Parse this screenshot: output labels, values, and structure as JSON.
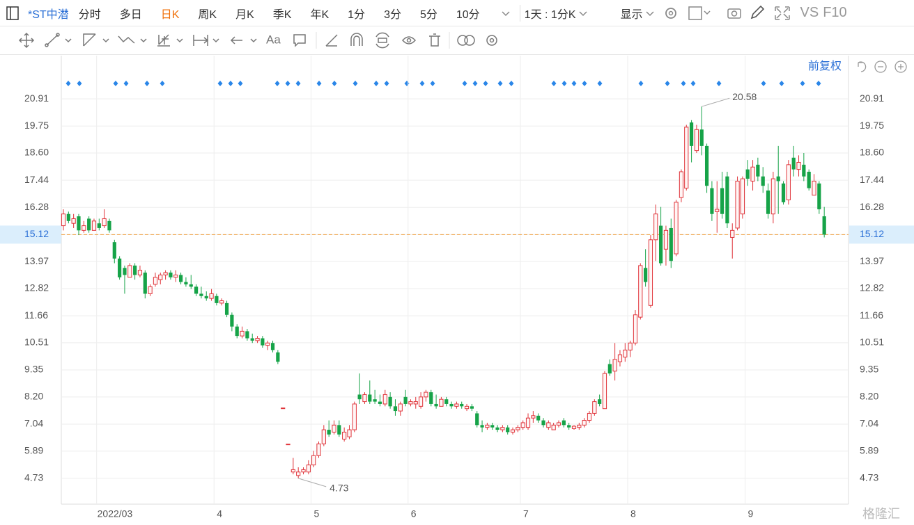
{
  "toolbar": {
    "stock": "*ST中潜",
    "tabs": [
      "分时",
      "多日",
      "日K",
      "周K",
      "月K",
      "季K",
      "年K",
      "1分",
      "3分",
      "5分",
      "10分"
    ],
    "active_tab": 2,
    "interval": "1天 : 1分K",
    "display": "显示",
    "vs": "VS",
    "f10": "F10"
  },
  "adjust": "前复权",
  "watermark": "格隆汇",
  "chart_data": {
    "type": "candlestick",
    "candles": [
      [
        15.5,
        16.2,
        15.3,
        16.0
      ],
      [
        16.0,
        16.1,
        15.6,
        15.7
      ],
      [
        15.6,
        16.0,
        15.4,
        15.8
      ],
      [
        15.9,
        16.0,
        15.1,
        15.3
      ],
      [
        15.3,
        15.7,
        15.2,
        15.5
      ],
      [
        15.8,
        15.9,
        15.2,
        15.3
      ],
      [
        15.3,
        15.8,
        15.3,
        15.7
      ],
      [
        15.6,
        15.8,
        15.3,
        15.4
      ],
      [
        15.5,
        16.2,
        15.4,
        15.8
      ],
      [
        15.7,
        15.8,
        15.2,
        15.3
      ],
      [
        14.8,
        14.9,
        13.9,
        14.1
      ],
      [
        14.1,
        14.2,
        13.2,
        13.3
      ],
      [
        13.7,
        13.8,
        12.6,
        13.4
      ],
      [
        13.3,
        13.9,
        13.3,
        13.8
      ],
      [
        13.8,
        13.9,
        13.2,
        13.4
      ],
      [
        13.4,
        13.8,
        13.3,
        13.6
      ],
      [
        13.5,
        13.6,
        12.4,
        12.6
      ],
      [
        12.6,
        13.0,
        12.5,
        12.9
      ],
      [
        13.0,
        13.5,
        12.9,
        13.3
      ],
      [
        13.2,
        13.5,
        13.0,
        13.4
      ],
      [
        13.4,
        13.6,
        13.2,
        13.5
      ],
      [
        13.5,
        13.6,
        13.2,
        13.3
      ],
      [
        13.3,
        13.6,
        13.1,
        13.4
      ],
      [
        13.4,
        13.5,
        13.0,
        13.1
      ],
      [
        13.1,
        13.3,
        12.9,
        13.0
      ],
      [
        13.0,
        13.4,
        12.8,
        12.9
      ],
      [
        12.9,
        13.0,
        12.5,
        12.6
      ],
      [
        12.6,
        12.9,
        12.4,
        12.5
      ],
      [
        12.5,
        12.7,
        12.3,
        12.4
      ],
      [
        12.4,
        12.8,
        12.3,
        12.6
      ],
      [
        12.5,
        12.6,
        12.1,
        12.2
      ],
      [
        12.2,
        12.4,
        12.1,
        12.3
      ],
      [
        12.2,
        12.3,
        11.6,
        11.7
      ],
      [
        11.7,
        11.8,
        11.0,
        11.2
      ],
      [
        11.2,
        11.3,
        10.7,
        10.8
      ],
      [
        10.8,
        11.2,
        10.7,
        11.0
      ],
      [
        11.0,
        11.1,
        10.6,
        10.7
      ],
      [
        10.7,
        10.9,
        10.5,
        10.6
      ],
      [
        10.6,
        10.8,
        10.5,
        10.7
      ],
      [
        10.7,
        10.8,
        10.3,
        10.4
      ],
      [
        10.4,
        10.6,
        10.2,
        10.5
      ],
      [
        10.5,
        10.6,
        10.1,
        10.2
      ],
      [
        10.1,
        10.2,
        9.6,
        9.7
      ],
      [
        7.73,
        7.73,
        7.73,
        7.73
      ],
      [
        6.19,
        6.19,
        6.19,
        6.19
      ],
      [
        5.0,
        5.6,
        4.9,
        5.1
      ],
      [
        4.85,
        5.2,
        4.73,
        5.0
      ],
      [
        5.0,
        5.2,
        4.9,
        5.1
      ],
      [
        5.0,
        5.5,
        4.9,
        5.3
      ],
      [
        5.3,
        5.9,
        5.2,
        5.7
      ],
      [
        5.7,
        6.3,
        5.6,
        6.2
      ],
      [
        6.2,
        7.0,
        6.1,
        6.8
      ],
      [
        6.8,
        7.2,
        6.5,
        6.6
      ],
      [
        6.7,
        7.2,
        6.6,
        7.0
      ],
      [
        7.0,
        7.2,
        6.5,
        6.6
      ],
      [
        6.4,
        6.9,
        6.3,
        6.7
      ],
      [
        6.5,
        7.0,
        6.4,
        6.8
      ],
      [
        6.8,
        8.0,
        6.7,
        7.9
      ],
      [
        8.3,
        9.2,
        7.9,
        8.1
      ],
      [
        8.0,
        8.4,
        7.9,
        8.3
      ],
      [
        8.3,
        8.9,
        7.9,
        8.0
      ],
      [
        8.1,
        8.5,
        7.9,
        8.0
      ],
      [
        8.0,
        8.3,
        7.8,
        7.9
      ],
      [
        7.9,
        8.5,
        7.8,
        8.3
      ],
      [
        8.2,
        8.4,
        7.7,
        7.8
      ],
      [
        7.8,
        8.1,
        7.4,
        7.6
      ],
      [
        7.6,
        8.0,
        7.4,
        7.9
      ],
      [
        8.2,
        8.5,
        7.8,
        7.9
      ],
      [
        7.9,
        8.1,
        7.8,
        8.0
      ],
      [
        7.9,
        8.2,
        7.7,
        8.0
      ],
      [
        7.8,
        8.4,
        7.7,
        8.2
      ],
      [
        8.2,
        8.5,
        8.0,
        8.4
      ],
      [
        8.4,
        8.5,
        7.8,
        7.9
      ],
      [
        7.9,
        8.3,
        7.7,
        7.8
      ],
      [
        7.8,
        8.2,
        7.8,
        8.1
      ],
      [
        8.1,
        8.2,
        7.8,
        7.9
      ],
      [
        7.9,
        8.0,
        7.7,
        7.8
      ],
      [
        7.8,
        8.0,
        7.7,
        7.9
      ],
      [
        7.9,
        8.0,
        7.7,
        7.8
      ],
      [
        7.7,
        7.9,
        7.6,
        7.8
      ],
      [
        7.8,
        7.9,
        7.6,
        7.7
      ],
      [
        7.5,
        7.6,
        6.9,
        7.0
      ],
      [
        7.0,
        7.2,
        6.7,
        6.9
      ],
      [
        6.9,
        7.1,
        6.8,
        7.0
      ],
      [
        7.0,
        7.1,
        6.8,
        6.9
      ],
      [
        6.9,
        7.0,
        6.7,
        6.8
      ],
      [
        6.8,
        7.0,
        6.7,
        6.9
      ],
      [
        6.9,
        7.0,
        6.6,
        6.7
      ],
      [
        6.7,
        6.9,
        6.6,
        6.8
      ],
      [
        6.8,
        7.0,
        6.7,
        6.9
      ],
      [
        6.9,
        7.2,
        6.8,
        7.1
      ],
      [
        6.9,
        7.5,
        6.8,
        7.3
      ],
      [
        7.3,
        7.6,
        7.1,
        7.4
      ],
      [
        7.4,
        7.5,
        7.1,
        7.2
      ],
      [
        7.2,
        7.3,
        6.9,
        7.0
      ],
      [
        6.9,
        7.2,
        6.8,
        7.1
      ],
      [
        6.8,
        7.1,
        6.8,
        7.0
      ],
      [
        7.0,
        7.2,
        6.9,
        7.1
      ],
      [
        7.2,
        7.3,
        6.9,
        7.0
      ],
      [
        7.0,
        7.1,
        6.8,
        6.9
      ],
      [
        6.85,
        7.0,
        6.8,
        6.95
      ],
      [
        6.9,
        7.1,
        6.8,
        7.0
      ],
      [
        7.0,
        7.3,
        6.9,
        7.2
      ],
      [
        7.2,
        7.6,
        7.1,
        7.5
      ],
      [
        7.5,
        8.1,
        7.4,
        8.0
      ],
      [
        8.1,
        8.3,
        7.8,
        7.9
      ],
      [
        7.7,
        9.3,
        7.7,
        9.2
      ],
      [
        9.6,
        9.8,
        9.1,
        9.2
      ],
      [
        9.3,
        10.5,
        8.9,
        9.8
      ],
      [
        9.7,
        10.2,
        9.5,
        10.0
      ],
      [
        9.9,
        10.5,
        9.7,
        10.2
      ],
      [
        10.2,
        10.6,
        9.9,
        10.5
      ],
      [
        10.5,
        11.9,
        10.4,
        11.7
      ],
      [
        11.6,
        13.9,
        11.5,
        13.8
      ],
      [
        13.7,
        14.5,
        12.9,
        13.1
      ],
      [
        12.1,
        15.1,
        12.0,
        14.9
      ],
      [
        14.9,
        16.4,
        14.0,
        16.0
      ],
      [
        15.5,
        16.3,
        13.8,
        13.9
      ],
      [
        14.5,
        15.5,
        13.8,
        15.3
      ],
      [
        15.4,
        15.8,
        13.7,
        14.0
      ],
      [
        14.3,
        16.6,
        14.2,
        16.5
      ],
      [
        16.7,
        17.9,
        16.5,
        17.8
      ],
      [
        17.1,
        19.8,
        17.0,
        19.7
      ],
      [
        19.9,
        20.0,
        18.2,
        18.9
      ],
      [
        18.7,
        19.8,
        18.6,
        19.6
      ],
      [
        19.6,
        20.58,
        18.5,
        18.9
      ],
      [
        18.9,
        19.0,
        16.9,
        17.2
      ],
      [
        17.1,
        17.4,
        15.7,
        16.0
      ],
      [
        16.1,
        17.4,
        15.2,
        16.2
      ],
      [
        17.1,
        17.8,
        15.8,
        16.0
      ],
      [
        17.6,
        17.8,
        15.4,
        15.6
      ],
      [
        15.0,
        15.6,
        14.1,
        15.3
      ],
      [
        15.4,
        17.6,
        15.3,
        17.4
      ],
      [
        16.0,
        17.6,
        15.8,
        17.5
      ],
      [
        17.9,
        18.3,
        17.2,
        17.5
      ],
      [
        17.4,
        18.3,
        17.0,
        18.0
      ],
      [
        18.1,
        18.4,
        17.4,
        17.6
      ],
      [
        17.6,
        18.0,
        16.9,
        17.2
      ],
      [
        17.0,
        17.3,
        15.8,
        16.0
      ],
      [
        16.0,
        17.8,
        15.6,
        17.5
      ],
      [
        17.6,
        18.9,
        16.0,
        17.4
      ],
      [
        17.3,
        17.4,
        16.4,
        16.5
      ],
      [
        16.6,
        18.3,
        16.4,
        18.1
      ],
      [
        18.4,
        18.9,
        17.6,
        17.9
      ],
      [
        17.9,
        18.5,
        17.6,
        18.2
      ],
      [
        18.1,
        18.6,
        17.4,
        17.6
      ],
      [
        17.8,
        17.9,
        17.0,
        17.1
      ],
      [
        16.8,
        17.7,
        16.8,
        17.4
      ],
      [
        17.3,
        17.4,
        16.0,
        16.2
      ],
      [
        15.9,
        16.3,
        15.0,
        15.12
      ]
    ],
    "up_color": "#e0343a",
    "down_color": "#16a348",
    "ylim": [
      3.63,
      22.75
    ],
    "yticks": [
      20.91,
      19.75,
      {
        "value": 18.6,
        "label": "18.60"
      },
      17.44,
      16.28,
      15.12,
      13.97,
      12.82,
      11.66,
      10.51,
      9.35,
      {
        "value": 8.2,
        "label": "8.20"
      },
      7.04,
      5.89,
      4.73
    ],
    "xticks": [
      {
        "value": 7,
        "label": "2022/03"
      },
      {
        "value": 30,
        "label": "4"
      },
      {
        "value": 49,
        "label": "5"
      },
      {
        "value": 68,
        "label": "6"
      },
      {
        "value": 90,
        "label": "7"
      },
      {
        "value": 111,
        "label": "8"
      },
      {
        "value": 134,
        "label": "9"
      }
    ],
    "last_price": 15.12,
    "max_price": 20.58,
    "min_price": 4.73,
    "grid": true
  }
}
